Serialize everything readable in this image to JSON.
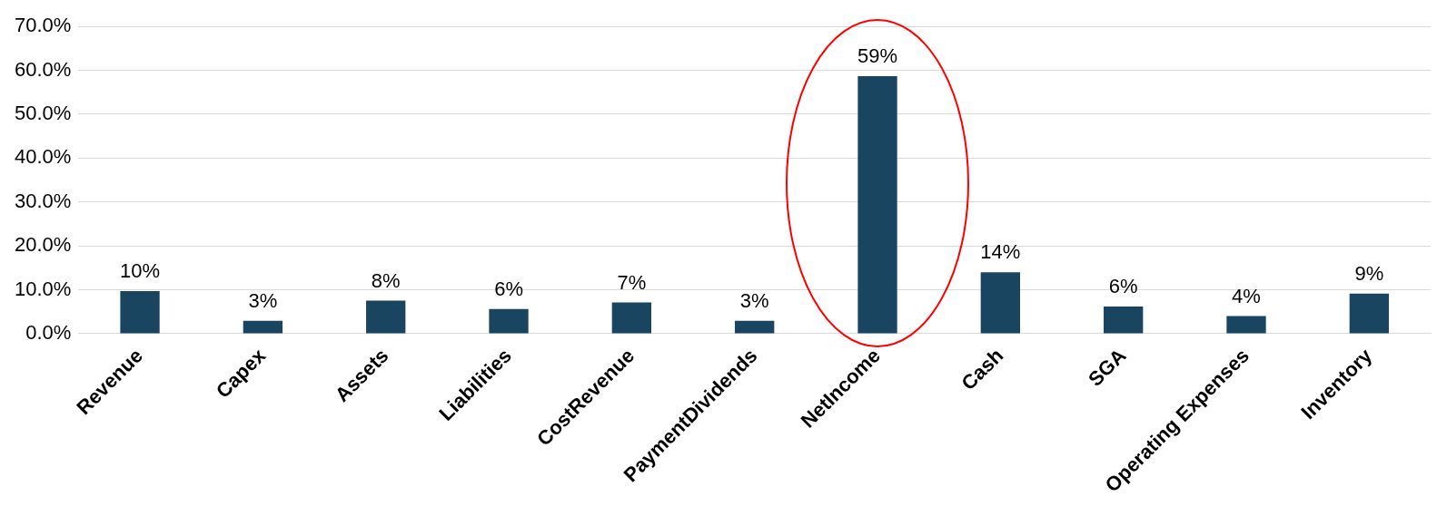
{
  "chart_data": {
    "type": "bar",
    "categories": [
      "Revenue",
      "Capex",
      "Assets",
      "Liabilities",
      "CostRevenue",
      "PaymentDividends",
      "NetIncome",
      "Cash",
      "SGA",
      "Operating Expenses",
      "Inventory"
    ],
    "values": [
      9.7,
      2.9,
      7.5,
      5.6,
      7.1,
      2.9,
      58.7,
      14.0,
      6.2,
      4.0,
      9.1
    ],
    "value_labels": [
      "10%",
      "3%",
      "8%",
      "6%",
      "7%",
      "3%",
      "59%",
      "14%",
      "6%",
      "4%",
      "9%"
    ],
    "color": "#1a4560",
    "ylim": [
      0,
      70
    ],
    "yticks": [
      {
        "value": 0,
        "label": "0.0%"
      },
      {
        "value": 10,
        "label": "10.0%"
      },
      {
        "value": 20,
        "label": "20.0%"
      },
      {
        "value": 30,
        "label": "30.0%"
      },
      {
        "value": 40,
        "label": "40.0%"
      },
      {
        "value": 50,
        "label": "50.0%"
      },
      {
        "value": 60,
        "label": "60.0%"
      },
      {
        "value": 70,
        "label": "70.0%"
      }
    ],
    "grid": "y",
    "legend": false
  }
}
